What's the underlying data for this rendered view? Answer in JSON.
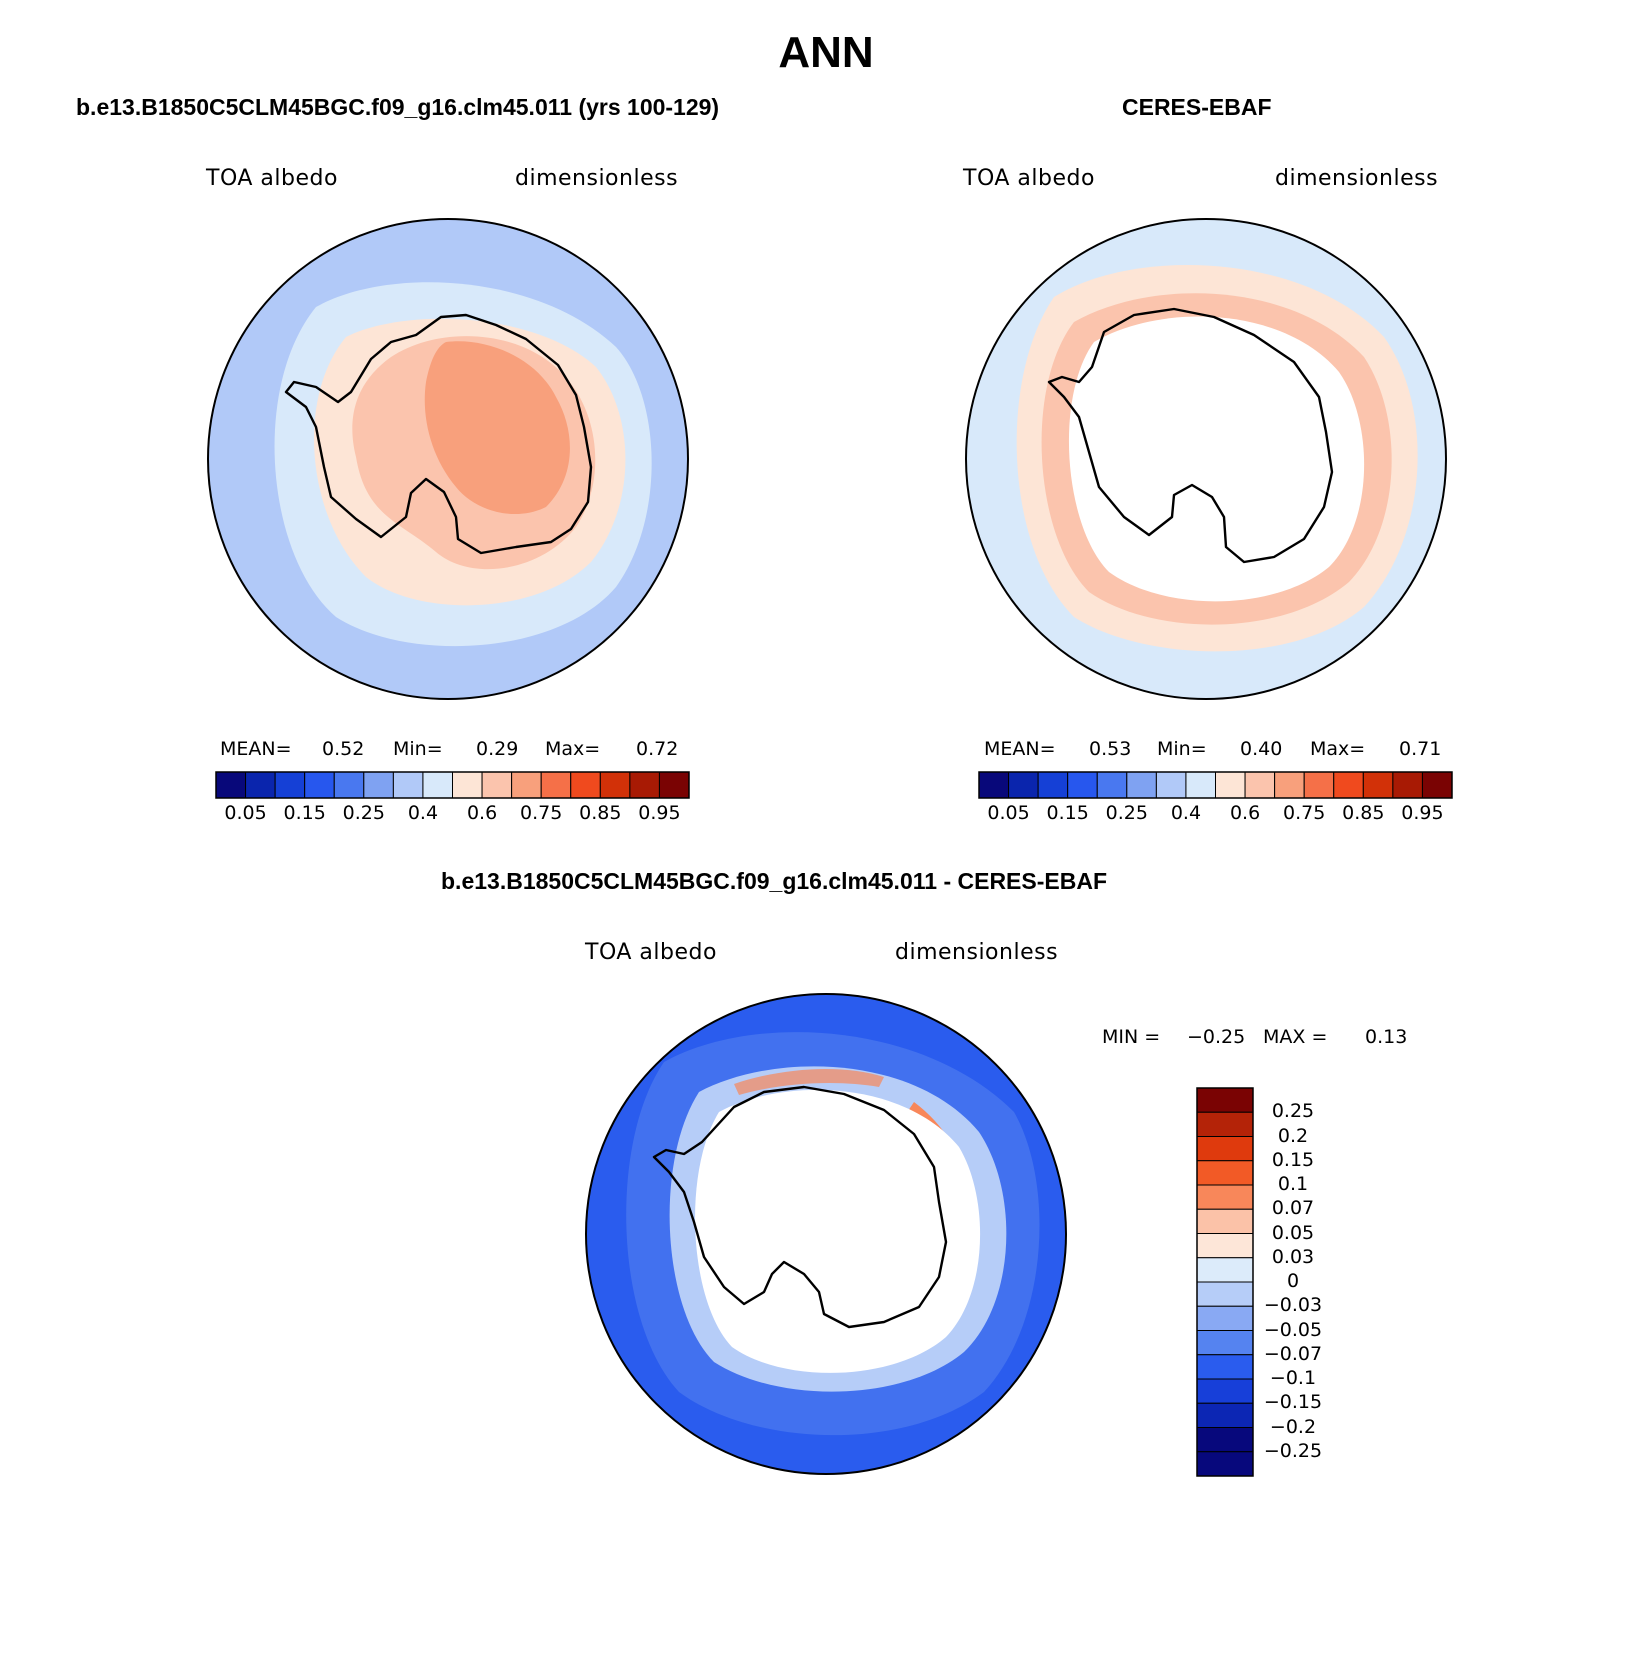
{
  "figure": {
    "title": "ANN"
  },
  "panels": [
    {
      "title": "b.e13.B1850C5CLM45BGC.f09_g16.clm45.011 (yrs 100-129)",
      "left_label": "TOA albedo",
      "right_label": "dimensionless",
      "stats": {
        "mean_label": "MEAN=",
        "mean": "0.52",
        "min_label": "Min=",
        "min": "0.29",
        "max_label": "Max=",
        "max": "0.72"
      }
    },
    {
      "title": "CERES-EBAF",
      "left_label": "TOA albedo",
      "right_label": "dimensionless",
      "stats": {
        "mean_label": "MEAN=",
        "mean": "0.53",
        "min_label": "Min=",
        "min": "0.40",
        "max_label": "Max=",
        "max": "0.71"
      }
    },
    {
      "title": "b.e13.B1850C5CLM45BGC.f09_g16.clm45.011 - CERES-EBAF",
      "left_label": "TOA albedo",
      "right_label": "dimensionless",
      "stats": {
        "min_label": "MIN =",
        "min": "−0.25",
        "max_label": "MAX =",
        "max": "0.13"
      }
    }
  ],
  "colorbar_abs": {
    "colors": [
      "#08087a",
      "#0a25ad",
      "#1540d6",
      "#2757ee",
      "#4978f0",
      "#7fa2f2",
      "#b1c9f8",
      "#d8e9fa",
      "#fde5d6",
      "#fbc4ad",
      "#f8a07c",
      "#f57048",
      "#f04a1e",
      "#d23108",
      "#a81a04",
      "#7a0303"
    ],
    "tick_labels": [
      "0.05",
      "0.15",
      "0.25",
      "0.4",
      "0.6",
      "0.75",
      "0.85",
      "0.95"
    ]
  },
  "colorbar_diff": {
    "colors": [
      "#7a0303",
      "#b42308",
      "#df3a0d",
      "#f25a26",
      "#f8875a",
      "#fbc2a8",
      "#fde6d8",
      "#dcebfa",
      "#b6cdf8",
      "#89a9f3",
      "#5583f0",
      "#2a5cee",
      "#173fd9",
      "#0c26b4",
      "#07087c"
    ],
    "tick_labels": [
      "0.25",
      "0.2",
      "0.15",
      "0.1",
      "0.07",
      "0.05",
      "0.03",
      "0",
      "−0.03",
      "−0.05",
      "−0.07",
      "−0.1",
      "−0.15",
      "−0.2",
      "−0.25"
    ]
  },
  "map_colors": {
    "ocean_outer": "#b1c9f8",
    "ocean_inner": "#d8e9fa",
    "ice_light": "#fde5d6",
    "ice_mid": "#fbc4ad",
    "ice_high": "#f8a07c",
    "diff_ocean": "#2a5cee",
    "diff_ocean_light": "#5583f0",
    "diff_ring_light": "#b6cdf8",
    "diff_ring_red": "#f8875a",
    "land_blank": "#ffffff",
    "coast": "#000000"
  }
}
